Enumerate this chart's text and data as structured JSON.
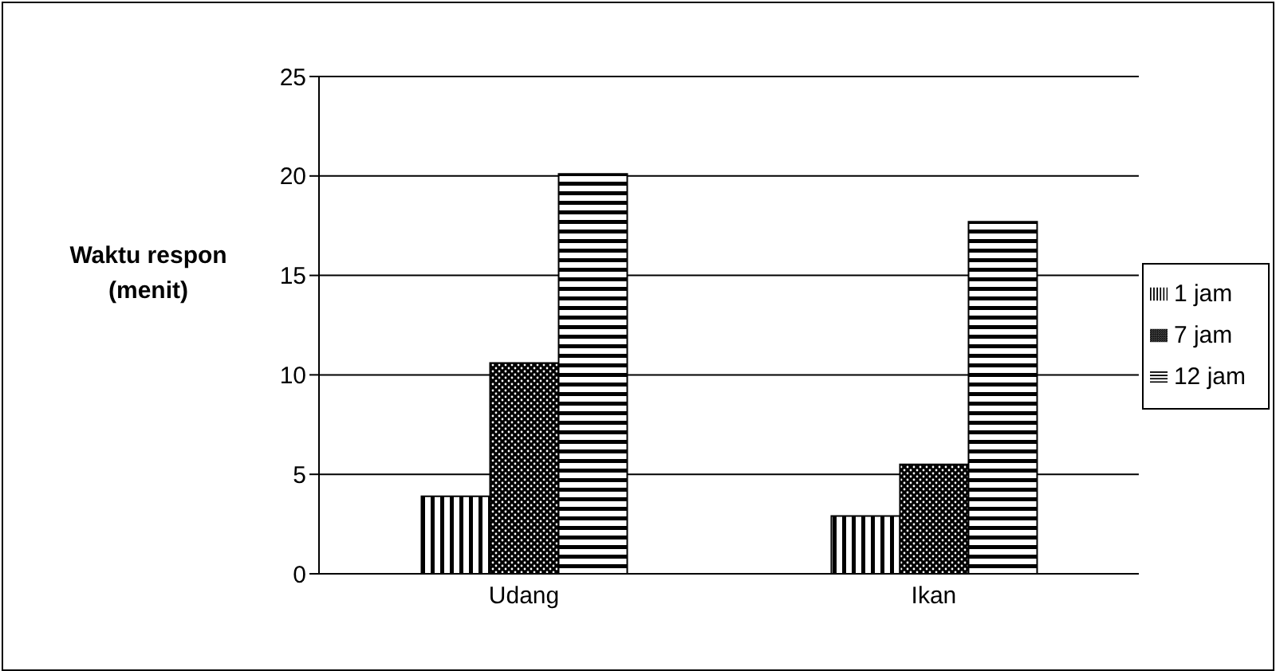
{
  "chart_data": {
    "type": "bar",
    "ylabel": "Waktu respon (menit)",
    "categories": [
      "Udang",
      "Ikan"
    ],
    "series": [
      {
        "name": "1 jam",
        "color": "#000000",
        "values": [
          3.9,
          2.9
        ]
      },
      {
        "name": "7 jam",
        "color": "#000000",
        "values": [
          10.6,
          5.5
        ]
      },
      {
        "name": "12 jam",
        "color": "#000000",
        "values": [
          20.1,
          17.7
        ]
      }
    ],
    "ylim": [
      0,
      25
    ],
    "yticks": [
      0,
      5,
      10,
      15,
      20,
      25
    ],
    "grid": "y",
    "legend": "right"
  }
}
